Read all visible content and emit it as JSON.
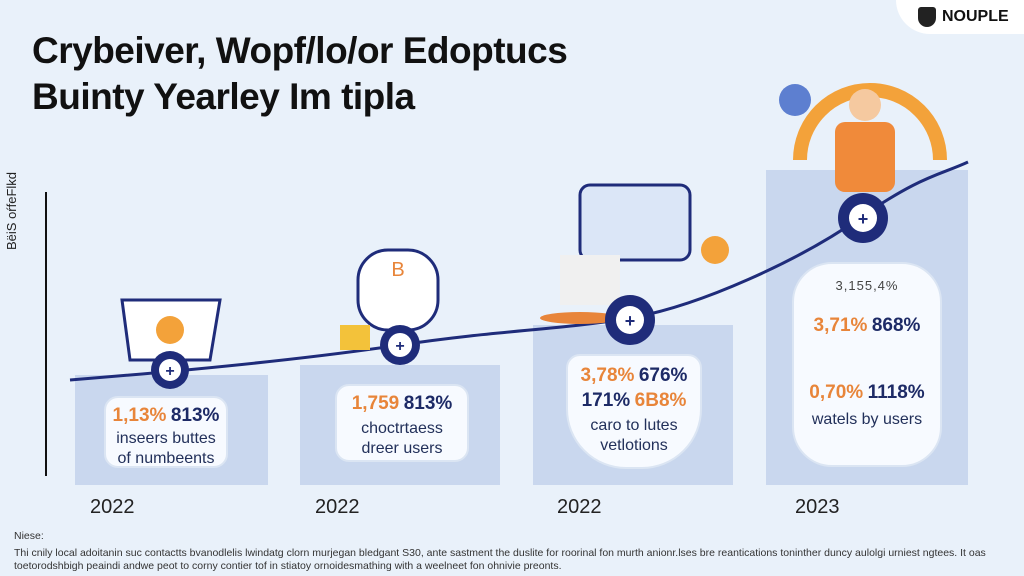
{
  "title_line1": "Crybeiver, Wopf/lo/or Edoptucs",
  "title_line2": "Buinty Yearley Im tipla",
  "logo": "NOUPLE",
  "y_axis_label": "BëiS oŕfeFlkd",
  "colors": {
    "bar": "#c9d7ee",
    "curve": "#1f2c7a",
    "orange": "#e8853a",
    "navy": "#1d2a66"
  },
  "columns": [
    {
      "year": "2022",
      "stat_a": "1,13%",
      "stat_b": "813%",
      "caption": "inseers buttes of numbeents"
    },
    {
      "year": "2022",
      "stat_a": "1,759",
      "stat_b": "813%",
      "caption": "choctrtaess dreer users"
    },
    {
      "year": "2022",
      "stat_a": "3,78%",
      "stat_b": "676%",
      "stat_c": "171%",
      "stat_d": "6B8%",
      "caption": "caro to lutes vetlotions"
    },
    {
      "year": "2023",
      "stat_top": "3,155,4%",
      "stat_a": "3,71%",
      "stat_b": "868%",
      "stat_c": "0,70%",
      "stat_d": "1118%",
      "caption": "watels by users"
    }
  ],
  "note_label": "Niese:",
  "note_text": "Thi cnily local adoitanin suc contactts bvanodlelis lwindatg clorn murjegan bledgant S30, ante sastment the duslite for roorinal fon murth anionr.lses bre reantications toninther duncy aulolgi urniest ngtees. It oas toetorodshbigh peaindi andwe peot to corny contier tof in stiatoy ornoidesmathing with a weelneet fon ohnivie preonts."
}
